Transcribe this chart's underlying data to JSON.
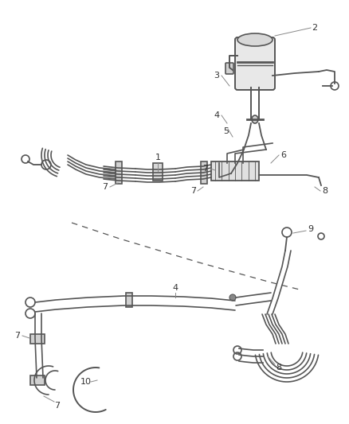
{
  "bg_color": "#ffffff",
  "line_color": "#555555",
  "label_color": "#333333",
  "lw": 1.2,
  "lw_thick": 1.8,
  "figsize": [
    4.38,
    5.33
  ],
  "dpi": 100
}
